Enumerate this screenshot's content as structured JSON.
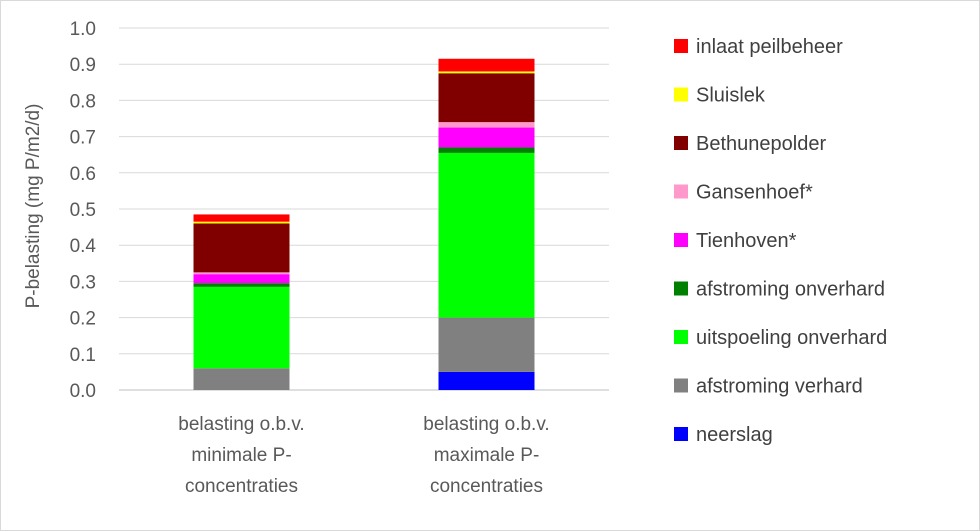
{
  "chart_data": {
    "type": "bar",
    "stacked": true,
    "title": "",
    "xlabel": "",
    "ylabel": "P-belasting (mg P/m2/d)",
    "ylim": [
      0,
      1.0
    ],
    "yticks": [
      "0.0",
      "0.1",
      "0.2",
      "0.3",
      "0.4",
      "0.5",
      "0.6",
      "0.7",
      "0.8",
      "0.9",
      "1.0"
    ],
    "grid": true,
    "legend_position": "right",
    "categories": [
      [
        "belasting o.b.v.",
        "minimale P-",
        "concentraties"
      ],
      [
        "belasting o.b.v.",
        "maximale P-",
        "concentraties"
      ]
    ],
    "series": [
      {
        "name": "neerslag",
        "color": "#0000ff",
        "values": [
          0.0,
          0.05
        ]
      },
      {
        "name": "afstroming verhard",
        "color": "#808080",
        "values": [
          0.06,
          0.15
        ]
      },
      {
        "name": "uitspoeling onverhard",
        "color": "#00ff00",
        "values": [
          0.225,
          0.455
        ]
      },
      {
        "name": "afstroming onverhard",
        "color": "#008000",
        "values": [
          0.01,
          0.015
        ]
      },
      {
        "name": "Tienhoven*",
        "color": "#ff00ff",
        "values": [
          0.025,
          0.055
        ]
      },
      {
        "name": "Gansenhoef*",
        "color": "#ff99cc",
        "values": [
          0.005,
          0.015
        ]
      },
      {
        "name": "Bethunepolder",
        "color": "#800000",
        "values": [
          0.135,
          0.135
        ]
      },
      {
        "name": "Sluislek",
        "color": "#ffff00",
        "values": [
          0.005,
          0.005
        ]
      },
      {
        "name": "inlaat peilbeheer",
        "color": "#ff0000",
        "values": [
          0.02,
          0.035
        ]
      }
    ]
  }
}
